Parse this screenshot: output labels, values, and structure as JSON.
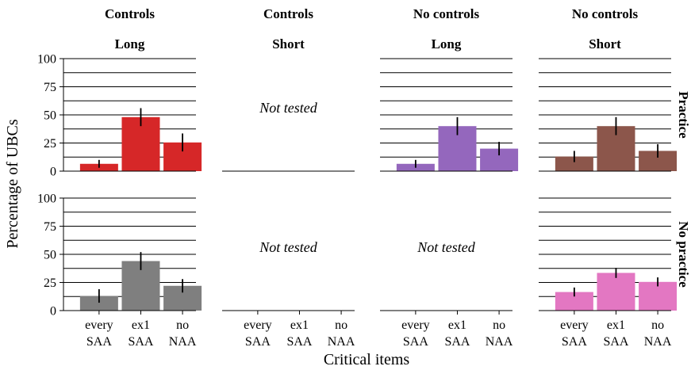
{
  "chart_data": {
    "type": "bar",
    "ylabel": "Percentage of UBCs",
    "xlabel": "Critical items",
    "ylim": [
      0,
      100
    ],
    "yticks": [
      0,
      25,
      50,
      75,
      100
    ],
    "grid": "horizontal gridlines every 12.5",
    "categories": [
      {
        "line1": "every",
        "line2": "SAA"
      },
      {
        "line1": "ex1",
        "line2": "SAA"
      },
      {
        "line1": "no",
        "line2": "NAA"
      }
    ],
    "columns": [
      {
        "top": "Controls",
        "bottom": "Long"
      },
      {
        "top": "Controls",
        "bottom": "Short"
      },
      {
        "top": "No controls",
        "bottom": "Long"
      },
      {
        "top": "No controls",
        "bottom": "Short"
      }
    ],
    "rows": [
      "Practice",
      "No practice"
    ],
    "not_tested_label": "Not tested",
    "panels": [
      {
        "row": 0,
        "col": 0,
        "tested": true,
        "color": "#d62728",
        "values": [
          6.5,
          48,
          25.5
        ],
        "err": [
          3.5,
          8,
          8
        ]
      },
      {
        "row": 0,
        "col": 1,
        "tested": false
      },
      {
        "row": 0,
        "col": 2,
        "tested": true,
        "color": "#9467bd",
        "values": [
          6.5,
          40,
          20
        ],
        "err": [
          3.5,
          8,
          6
        ]
      },
      {
        "row": 0,
        "col": 3,
        "tested": true,
        "color": "#8c564b",
        "values": [
          13,
          40,
          18
        ],
        "err": [
          5,
          8,
          6
        ]
      },
      {
        "row": 1,
        "col": 0,
        "tested": true,
        "color": "#7f7f7f",
        "values": [
          13,
          44,
          22
        ],
        "err": [
          6,
          8,
          6
        ]
      },
      {
        "row": 1,
        "col": 1,
        "tested": false
      },
      {
        "row": 1,
        "col": 2,
        "tested": false
      },
      {
        "row": 1,
        "col": 3,
        "tested": true,
        "color": "#e377c2",
        "values": [
          16.5,
          33.5,
          25.5
        ],
        "err": [
          4,
          4.5,
          4
        ]
      }
    ]
  }
}
